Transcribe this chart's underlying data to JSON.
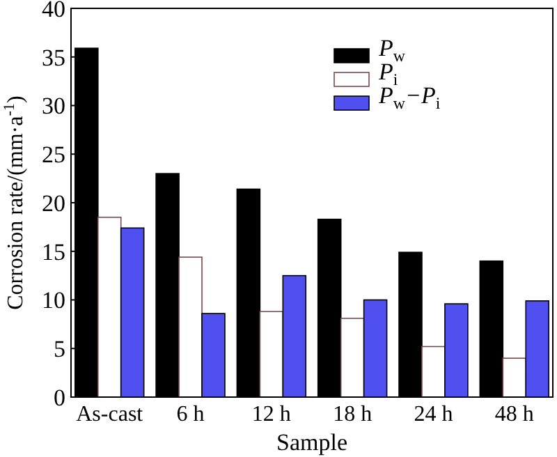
{
  "chart_data": {
    "type": "bar",
    "xlabel": "Sample",
    "ylabel": "Corrosion rate/(mm·a$^{-1}$)",
    "categories": [
      "As-cast",
      "6 h",
      "12 h",
      "18 h",
      "24 h",
      "48 h"
    ],
    "series": [
      {
        "name": "P$_{w}$",
        "color": "#000000",
        "values": [
          35.9,
          23.0,
          21.4,
          18.3,
          14.9,
          14.0
        ]
      },
      {
        "name": "P$_{i}$",
        "color": "#ffffff",
        "values": [
          18.5,
          14.4,
          8.8,
          8.1,
          5.2,
          4.0
        ]
      },
      {
        "name": "P$_{w}$−P$_{i}$",
        "color": "#5050f0",
        "values": [
          17.4,
          8.6,
          12.5,
          10.0,
          9.6,
          9.9
        ]
      }
    ],
    "ylim": [
      0,
      40
    ],
    "yticks": [
      0,
      5,
      10,
      15,
      20,
      25,
      30,
      35,
      40
    ],
    "grid": false,
    "legend": "top right"
  }
}
